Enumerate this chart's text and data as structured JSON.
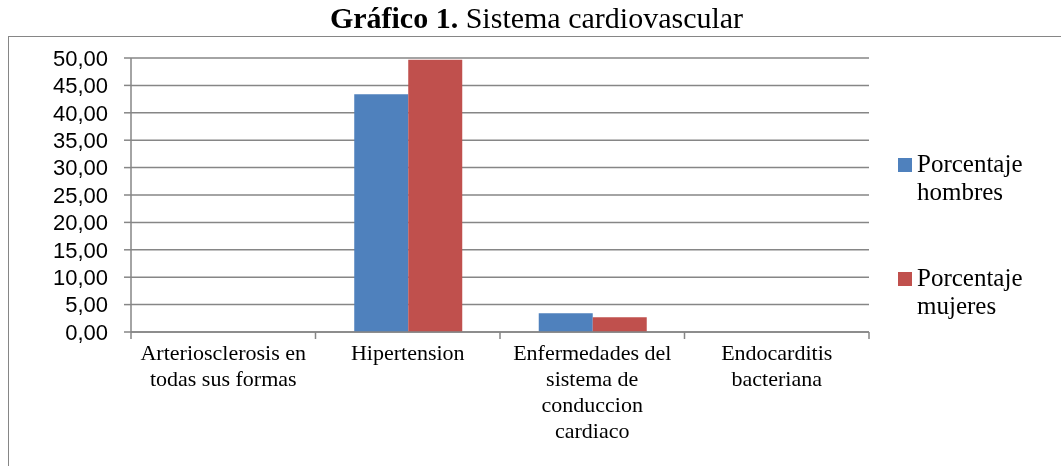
{
  "chart_data": {
    "type": "bar",
    "title": "Gráfico 1. Sistema cardiovascular",
    "categories": [
      "Arteriosclerosis en todas sus formas",
      "Hipertension",
      "Enfermedades del sistema de conduccion cardiaco",
      "Endocarditis bacteriana"
    ],
    "series": [
      {
        "name": "Porcentaje hombres",
        "color": "#4f81bd",
        "values": [
          0,
          43.4,
          3.4,
          0
        ]
      },
      {
        "name": "Porcentaje mujeres",
        "color": "#c0504d",
        "values": [
          0,
          49.7,
          2.7,
          0
        ]
      }
    ],
    "ylim": [
      0,
      50
    ],
    "yticks": [
      {
        "value": 0,
        "label": "0,00"
      },
      {
        "value": 5,
        "label": "5,00"
      },
      {
        "value": 10,
        "label": "10,00"
      },
      {
        "value": 15,
        "label": "15,00"
      },
      {
        "value": 20,
        "label": "20,00"
      },
      {
        "value": 25,
        "label": "25,00"
      },
      {
        "value": 30,
        "label": "30,00"
      },
      {
        "value": 35,
        "label": "35,00"
      },
      {
        "value": 40,
        "label": "40,00"
      },
      {
        "value": 45,
        "label": "45,00"
      },
      {
        "value": 50,
        "label": "50,00"
      }
    ],
    "grid": "y",
    "legend": "right"
  }
}
